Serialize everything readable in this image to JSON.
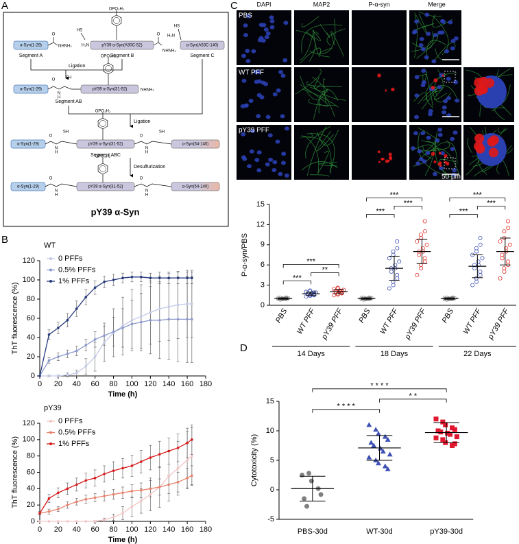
{
  "panels": [
    "A",
    "B",
    "C",
    "D"
  ],
  "diagram": {
    "segments": {
      "a": "Segment A",
      "b": "Segment B",
      "c": "Segment C",
      "ab": "Segment AB",
      "abc": "Segment ABC"
    },
    "peptides": {
      "n": "α-Syn(1-29)",
      "b": "pY39 α-Syn(A30C-52)",
      "c": "α-Syn(A53C-140)",
      "mid": "pY39 α-Syn(31-52)",
      "end": "α-Syn(54-140)"
    },
    "groups": {
      "phosphate": "OPO₃H₂",
      "hydrazide": "NHNH₂",
      "thiol": "SH",
      "thiol_left": "HS",
      "amine": "H₂N",
      "nitrogen": "N",
      "hydrogen": "H",
      "oxygen": "O"
    },
    "steps": [
      "Ligation",
      "Ligation",
      "Desulfurization"
    ],
    "product": "pY39 α-Syn"
  },
  "micrographs": {
    "channels": [
      "DAPI",
      "MAP2",
      "P-α-syn",
      "Merge"
    ],
    "conditions": [
      "PBS",
      "WT PFF",
      "pY39 PFF"
    ],
    "scale_bar": "50 μm"
  },
  "chart_data": [
    {
      "type": "line",
      "title": "WT",
      "xlabel": "Time (h)",
      "ylabel": "ThT fluorescence (%)",
      "x": [
        0,
        10,
        20,
        30,
        40,
        50,
        60,
        70,
        80,
        90,
        100,
        110,
        120,
        130,
        140,
        150,
        160,
        165
      ],
      "series": [
        {
          "name": "0 PFFs",
          "color": "#c3c9e6",
          "values": [
            0,
            0,
            0,
            1,
            3,
            10,
            20,
            35,
            45,
            52,
            58,
            62,
            66,
            70,
            72,
            74,
            75,
            75
          ],
          "errors": [
            0,
            1,
            1,
            2,
            3,
            8,
            15,
            20,
            25,
            30,
            32,
            33,
            33,
            34,
            35,
            35,
            35,
            35
          ]
        },
        {
          "name": "0.5% PFFs",
          "color": "#8a98cc",
          "values": [
            0,
            16,
            20,
            23,
            26,
            32,
            38,
            42,
            46,
            50,
            54,
            56,
            58,
            58,
            59,
            59,
            59,
            59
          ],
          "errors": [
            0,
            3,
            4,
            4,
            5,
            6,
            8,
            10,
            15,
            20,
            25,
            30,
            35,
            40,
            42,
            44,
            45,
            45
          ]
        },
        {
          "name": "1% PFFs",
          "color": "#26397a",
          "values": [
            0,
            43,
            50,
            58,
            70,
            82,
            92,
            98,
            100,
            102,
            103,
            103,
            102,
            102,
            102,
            102,
            102,
            102
          ],
          "errors": [
            0,
            5,
            6,
            7,
            8,
            8,
            7,
            6,
            6,
            5,
            5,
            5,
            5,
            6,
            6,
            6,
            6,
            6
          ]
        }
      ],
      "xlim": [
        0,
        180
      ],
      "xticks": [
        0,
        20,
        40,
        60,
        80,
        100,
        120,
        140,
        160,
        180
      ],
      "ylim": [
        0,
        120
      ],
      "yticks": [
        0,
        20,
        40,
        60,
        80,
        100,
        120
      ],
      "legend": "upper left"
    },
    {
      "type": "line",
      "title": "pY39",
      "xlabel": "Time (h)",
      "ylabel": "ThT fluorescence (%)",
      "x": [
        0,
        10,
        20,
        30,
        40,
        50,
        60,
        70,
        80,
        90,
        100,
        110,
        120,
        130,
        140,
        150,
        160,
        165
      ],
      "series": [
        {
          "name": "0 PFFs",
          "color": "#f4c4c4",
          "values": [
            0,
            0,
            0,
            0,
            0,
            0,
            0,
            2,
            5,
            10,
            18,
            25,
            33,
            42,
            55,
            65,
            75,
            80
          ],
          "errors": [
            0,
            0,
            0,
            0,
            0,
            0,
            1,
            2,
            4,
            8,
            12,
            15,
            20,
            25,
            30,
            33,
            35,
            35
          ]
        },
        {
          "name": "0.5% PFFs",
          "color": "#e8806a",
          "values": [
            10,
            12,
            15,
            20,
            24,
            27,
            29,
            31,
            33,
            35,
            37,
            38,
            40,
            42,
            45,
            48,
            53,
            56
          ],
          "errors": [
            2,
            3,
            3,
            4,
            4,
            5,
            5,
            6,
            6,
            7,
            8,
            9,
            10,
            10,
            11,
            12,
            12,
            12
          ]
        },
        {
          "name": "1% PFFs",
          "color": "#d7191c",
          "values": [
            10,
            28,
            35,
            40,
            45,
            50,
            53,
            58,
            62,
            65,
            68,
            73,
            78,
            82,
            86,
            90,
            96,
            100
          ],
          "errors": [
            2,
            5,
            6,
            7,
            8,
            9,
            10,
            10,
            11,
            12,
            13,
            14,
            15,
            16,
            16,
            17,
            18,
            18
          ]
        }
      ],
      "xlim": [
        0,
        180
      ],
      "xticks": [
        0,
        20,
        40,
        60,
        80,
        100,
        120,
        140,
        160,
        180
      ],
      "ylim": [
        0,
        120
      ],
      "yticks": [
        0,
        20,
        40,
        60,
        80,
        100,
        120
      ],
      "legend": "upper left"
    },
    {
      "type": "dot",
      "ylabel": "P-α-syn/PBS",
      "ylim": [
        0,
        15
      ],
      "yticks": [
        0,
        3,
        6,
        9,
        12,
        15
      ],
      "colors": [
        "#8c8c8c",
        "#3f51b5",
        "#e0302a"
      ],
      "markers": [
        "circle-open",
        "circle-open",
        "circle-open"
      ],
      "groups": [
        {
          "name": "14 Days",
          "categories": [
            "PBS",
            "WT PFF",
            "pY39 PFF"
          ],
          "points": [
            [
              0.9,
              0.95,
              1,
              1,
              1.05,
              1.1,
              0.85,
              1,
              0.95,
              1.05,
              1.1,
              0.9,
              1,
              1.15,
              0.95
            ],
            [
              1.3,
              1.4,
              1.5,
              1.6,
              1.6,
              1.7,
              1.7,
              1.8,
              1.8,
              1.9,
              2.0,
              2.1,
              2.2,
              1.5,
              1.9
            ],
            [
              1.5,
              1.6,
              1.7,
              1.8,
              1.9,
              2.0,
              2.0,
              2.1,
              2.2,
              2.3,
              2.4,
              2.5,
              2.6,
              1.8,
              2.1
            ]
          ],
          "means": [
            1.0,
            1.7,
            2.0
          ],
          "sds": [
            0.1,
            0.25,
            0.3
          ],
          "significance": [
            "***",
            "**",
            "***"
          ]
        },
        {
          "name": "18 Days",
          "categories": [
            "PBS",
            "WT PFF",
            "pY39 PFF"
          ],
          "points": [
            [
              0.9,
              0.95,
              1,
              1,
              1.05,
              1.1,
              0.85,
              1,
              0.95,
              1.05,
              1.1,
              0.9,
              1,
              1.15,
              0.95
            ],
            [
              2.5,
              3,
              3.5,
              4,
              4.5,
              5,
              5.5,
              5.5,
              6,
              6.5,
              7,
              7.5,
              8,
              8.5,
              9.5
            ],
            [
              4.5,
              5.5,
              6,
              6.5,
              7,
              7.5,
              8,
              8,
              8.5,
              9,
              9.5,
              10,
              10.5,
              11,
              12.5
            ]
          ],
          "means": [
            1.0,
            5.5,
            8.0
          ],
          "sds": [
            0.1,
            1.8,
            1.8
          ],
          "significance": [
            "***",
            "***",
            "***"
          ]
        },
        {
          "name": "22 Days",
          "categories": [
            "PBS",
            "WT PFF",
            "pY39 PFF"
          ],
          "points": [
            [
              0.9,
              0.95,
              1,
              1,
              1.05,
              1.1,
              0.85,
              1,
              0.95,
              1.05,
              1.1,
              0.9,
              1,
              1.15,
              0.95
            ],
            [
              3,
              3.5,
              4,
              4.5,
              5,
              5.5,
              6,
              6,
              6.5,
              7,
              7.5,
              8,
              8.5,
              9,
              10
            ],
            [
              4,
              5,
              5.5,
              6,
              6.5,
              7,
              7.5,
              8,
              8.5,
              9,
              9.5,
              10,
              11,
              11.5,
              12.5
            ]
          ],
          "means": [
            1.0,
            5.8,
            8.0
          ],
          "sds": [
            0.1,
            1.7,
            2.0
          ],
          "significance": [
            "***",
            "***",
            "***"
          ]
        }
      ]
    },
    {
      "type": "dot",
      "ylabel": "Cytotoxicity (%)",
      "ylim": [
        -5,
        15
      ],
      "yticks": [
        -5,
        0,
        5,
        10,
        15
      ],
      "colors": [
        "#7f7f7f",
        "#3f51b5",
        "#e0182f"
      ],
      "markers": [
        "circle",
        "triangle",
        "square"
      ],
      "groups": [
        {
          "categories": [
            "PBS-30d",
            "WT-30d",
            "pY39-30d"
          ],
          "points": [
            [
              2.5,
              2.8,
              1.5,
              0.2,
              -0.8,
              -1.5,
              -2.8
            ],
            [
              11,
              10.2,
              9.5,
              9,
              8.5,
              8,
              7.5,
              7,
              6.5,
              6,
              5.5,
              5,
              4.5,
              4,
              3.5
            ],
            [
              12,
              11.5,
              11,
              10.5,
              10.2,
              10,
              9.8,
              9.6,
              9.4,
              9,
              8.8,
              8.5,
              8,
              7.5,
              7.8
            ]
          ],
          "means": [
            0.2,
            7.1,
            9.7
          ],
          "sds": [
            2.1,
            2.1,
            1.7
          ],
          "significance": [
            "* * * *",
            "* *",
            "* * * *"
          ]
        }
      ]
    }
  ]
}
